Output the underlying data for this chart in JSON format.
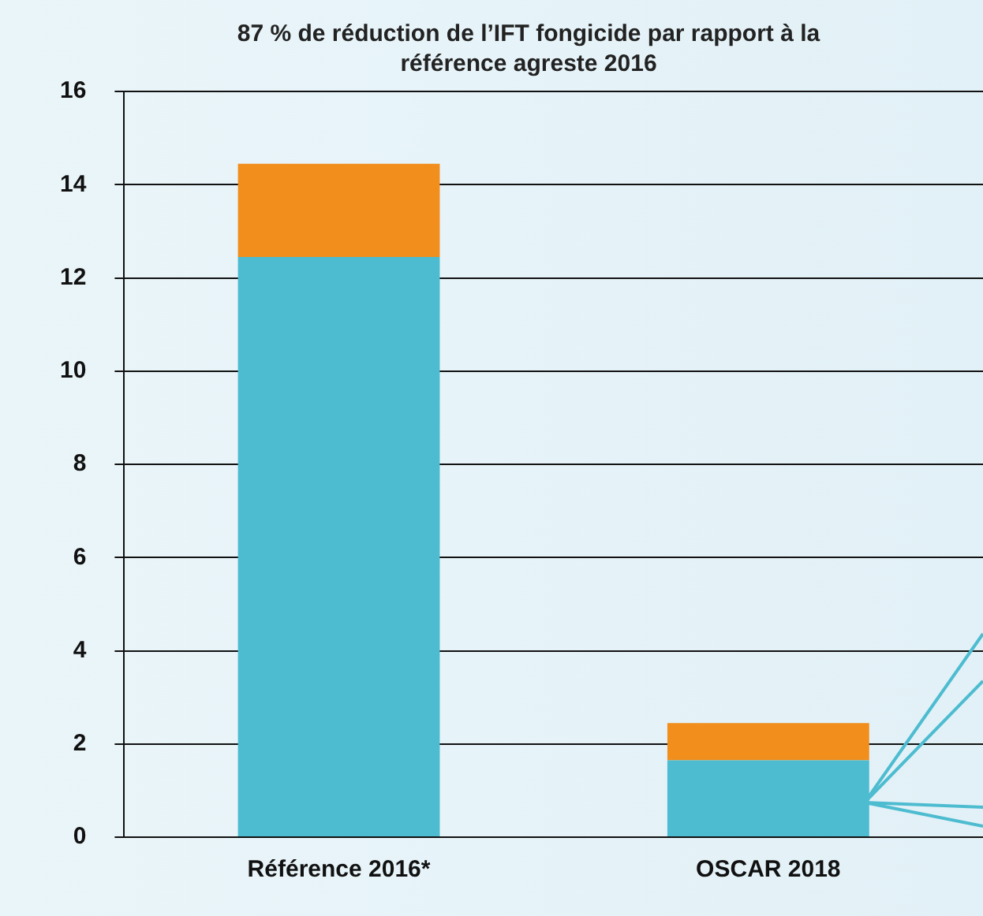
{
  "chart_data": {
    "type": "bar",
    "title": "87 % de réduction de l’IFT fongicide par rapport à la référence agreste 2016",
    "categories": [
      "Référence 2016*",
      "OSCAR 2018"
    ],
    "stacked": true,
    "series": [
      {
        "color": "#4dbcd0",
        "values": [
          12.45,
          1.65
        ]
      },
      {
        "color": "#f28e1c",
        "values": [
          2.0,
          0.8
        ]
      }
    ],
    "ylim": [
      0,
      16
    ],
    "yticks": [
      0,
      2,
      4,
      6,
      8,
      10,
      12,
      14,
      16
    ],
    "grid": "y",
    "legend": false
  }
}
